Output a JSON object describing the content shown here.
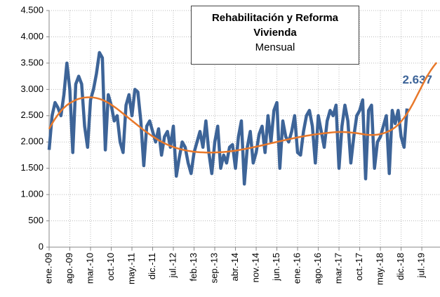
{
  "chart_data": {
    "type": "line",
    "title": "Rehabilitación y Reforma Vivienda",
    "subtitle": "Mensual",
    "categories": [
      "ene.-09",
      null,
      null,
      null,
      null,
      null,
      null,
      "ago.-09",
      null,
      null,
      null,
      null,
      null,
      null,
      "mar.-10",
      null,
      null,
      null,
      null,
      null,
      null,
      "oct.-10",
      null,
      null,
      null,
      null,
      null,
      null,
      "may.-11",
      null,
      null,
      null,
      null,
      null,
      null,
      "dic.-11",
      null,
      null,
      null,
      null,
      null,
      null,
      "jul.-12",
      null,
      null,
      null,
      null,
      null,
      null,
      "feb.-13",
      null,
      null,
      null,
      null,
      null,
      null,
      "sep.-13",
      null,
      null,
      null,
      null,
      null,
      null,
      "abr.-14",
      null,
      null,
      null,
      null,
      null,
      null,
      "nov.-14",
      null,
      null,
      null,
      null,
      null,
      null,
      "jun.-15",
      null,
      null,
      null,
      null,
      null,
      null,
      "ene.-16",
      null,
      null,
      null,
      null,
      null,
      null,
      "ago.-16",
      null,
      null,
      null,
      null,
      null,
      null,
      "mar.-17",
      null,
      null,
      null,
      null,
      null,
      null,
      "oct.-17",
      null,
      null,
      null,
      null,
      null,
      null,
      "may.-18",
      null,
      null,
      null,
      null,
      null,
      null,
      "dic.-18",
      null,
      null,
      null,
      null,
      null,
      null,
      "jul.-19",
      null,
      null,
      null,
      null,
      null
    ],
    "series": [
      {
        "color": "#3d6498",
        "values": [
          1850,
          2500,
          2750,
          2650,
          2500,
          2900,
          3500,
          3000,
          1800,
          3100,
          3250,
          3100,
          2300,
          1900,
          2800,
          3000,
          3300,
          3700,
          3600,
          1850,
          2900,
          2700,
          2400,
          2500,
          2000,
          1800,
          2700,
          2900,
          2500,
          3000,
          2950,
          2400,
          1550,
          2300,
          2400,
          2200,
          2000,
          2250,
          1750,
          2100,
          2200,
          1900,
          2300,
          1350,
          1700,
          2000,
          1900,
          1600,
          1400,
          1800,
          2000,
          2200,
          1900,
          2400,
          1800,
          1400,
          2000,
          2300,
          1500,
          1750,
          1600,
          1900,
          1950,
          1500,
          2100,
          2400,
          1200,
          1900,
          2200,
          1600,
          1800,
          2150,
          2300,
          1800,
          2500,
          2000,
          2600,
          2750,
          1500,
          2400,
          2100,
          2000,
          2200,
          2500,
          1800,
          1750,
          2200,
          2500,
          2600,
          2300,
          1600,
          2500,
          2200,
          1900,
          2400,
          2600,
          2500,
          2700,
          1500,
          2300,
          2700,
          2400,
          1600,
          2100,
          2500,
          2600,
          2800,
          1300,
          2600,
          2700,
          1500,
          2000,
          2100,
          2300,
          2500,
          1400,
          2600,
          2350,
          2600,
          2100,
          1900,
          2637,
          null,
          null,
          null,
          null,
          null,
          null,
          null,
          null,
          null,
          null
        ],
        "value_labels": [
          null,
          null,
          null,
          null,
          null,
          null,
          null,
          null,
          null,
          null,
          null,
          null,
          null,
          null,
          null,
          null,
          null,
          null,
          null,
          null,
          null,
          null,
          null,
          null,
          null,
          null,
          null,
          null,
          null,
          null,
          null,
          null,
          null,
          null,
          null,
          null,
          null,
          null,
          null,
          null,
          null,
          null,
          null,
          null,
          null,
          null,
          null,
          null,
          null,
          null,
          null,
          null,
          null,
          null,
          null,
          null,
          null,
          null,
          null,
          null,
          null,
          null,
          null,
          null,
          null,
          null,
          null,
          null,
          null,
          null,
          null,
          null,
          null,
          null,
          null,
          null,
          null,
          null,
          null,
          null,
          null,
          null,
          null,
          null,
          null,
          null,
          null,
          null,
          null,
          null,
          null,
          null,
          null,
          null,
          null,
          null,
          null,
          null,
          null,
          null,
          null,
          null,
          null,
          null,
          null,
          null,
          null,
          null,
          null,
          null,
          null,
          null,
          null,
          null,
          null,
          null,
          null,
          null,
          null,
          null,
          null,
          "2.637",
          null,
          null,
          null,
          null,
          null,
          null,
          null,
          null,
          null,
          null
        ]
      },
      {
        "color": "#e8782a",
        "values": [
          2250,
          2350,
          2440,
          2520,
          2590,
          2650,
          2700,
          2740,
          2770,
          2800,
          2820,
          2835,
          2845,
          2850,
          2850,
          2845,
          2835,
          2820,
          2800,
          2775,
          2745,
          2710,
          2670,
          2630,
          2585,
          2540,
          2495,
          2450,
          2405,
          2360,
          2315,
          2270,
          2225,
          2185,
          2145,
          2105,
          2070,
          2035,
          2005,
          1975,
          1950,
          1925,
          1905,
          1885,
          1870,
          1855,
          1842,
          1832,
          1823,
          1815,
          1809,
          1805,
          1802,
          1800,
          1800,
          1800,
          1801,
          1803,
          1806,
          1810,
          1815,
          1821,
          1828,
          1836,
          1845,
          1855,
          1865,
          1876,
          1887,
          1899,
          1911,
          1923,
          1936,
          1949,
          1962,
          1975,
          1988,
          2001,
          2014,
          2027,
          2040,
          2052,
          2064,
          2076,
          2087,
          2098,
          2108,
          2118,
          2127,
          2136,
          2144,
          2152,
          2159,
          2166,
          2172,
          2178,
          2184,
          2188,
          2190,
          2190,
          2188,
          2185,
          2180,
          2175,
          2168,
          2160,
          2150,
          2140,
          2135,
          2133,
          2135,
          2140,
          2150,
          2165,
          2185,
          2210,
          2240,
          2280,
          2330,
          2390,
          2460,
          2540,
          2630,
          2730,
          2840,
          2950,
          3060,
          3170,
          3270,
          3360,
          3440,
          3510
        ]
      }
    ],
    "ylim": [
      0,
      4500
    ],
    "yticks": [
      0,
      500,
      {
        "value": 1000,
        "label": "1.000"
      },
      {
        "value": 1500,
        "label": "1.500"
      },
      {
        "value": 2000,
        "label": "2.000"
      },
      {
        "value": 2500,
        "label": "2.500"
      },
      {
        "value": 3000,
        "label": "3.000"
      },
      {
        "value": 3500,
        "label": "3.500"
      },
      {
        "value": 4000,
        "label": "4.000"
      },
      {
        "value": 4500,
        "label": "4.500"
      }
    ],
    "grid": true
  }
}
